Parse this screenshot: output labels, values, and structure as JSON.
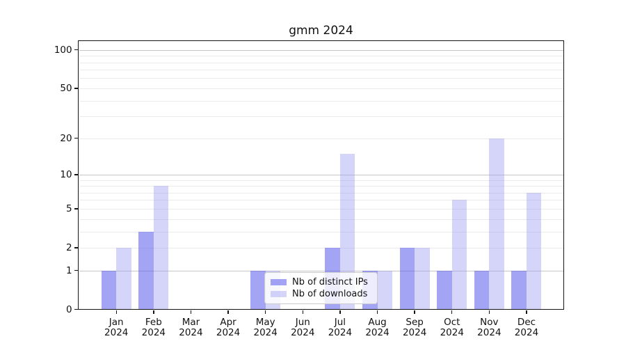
{
  "title": "gmm 2024",
  "chart_data": {
    "type": "bar",
    "title": "gmm 2024",
    "categories": [
      "Jan 2024",
      "Feb 2024",
      "Mar 2024",
      "Apr 2024",
      "May 2024",
      "Jun 2024",
      "Jul 2024",
      "Aug 2024",
      "Sep 2024",
      "Oct 2024",
      "Nov 2024",
      "Dec 2024"
    ],
    "series": [
      {
        "name": "Nb of distinct IPs",
        "color": "#a6a6f4",
        "fill": "rgba(90,90,235,0.55)",
        "values": [
          1,
          3,
          0,
          0,
          1,
          0,
          2,
          1,
          2,
          1,
          1,
          1
        ]
      },
      {
        "name": "Nb of downloads",
        "color": "#dcdcf9",
        "fill": "rgba(150,150,240,0.4)",
        "values": [
          2,
          8,
          0,
          0,
          1,
          0,
          15,
          1,
          2,
          6,
          20,
          7
        ]
      }
    ],
    "xlabel": "",
    "ylabel": "",
    "yscale": "log1p",
    "ylim": [
      0,
      116
    ],
    "y_ticks": [
      0,
      1,
      2,
      5,
      10,
      20,
      50,
      100
    ],
    "gridlines": {
      "decade": [
        1,
        10,
        100
      ],
      "minor": [
        2,
        3,
        4,
        5,
        6,
        7,
        8,
        9,
        20,
        30,
        40,
        50,
        60,
        70,
        80,
        90
      ]
    },
    "grid": true,
    "legend_position": "lower center"
  }
}
